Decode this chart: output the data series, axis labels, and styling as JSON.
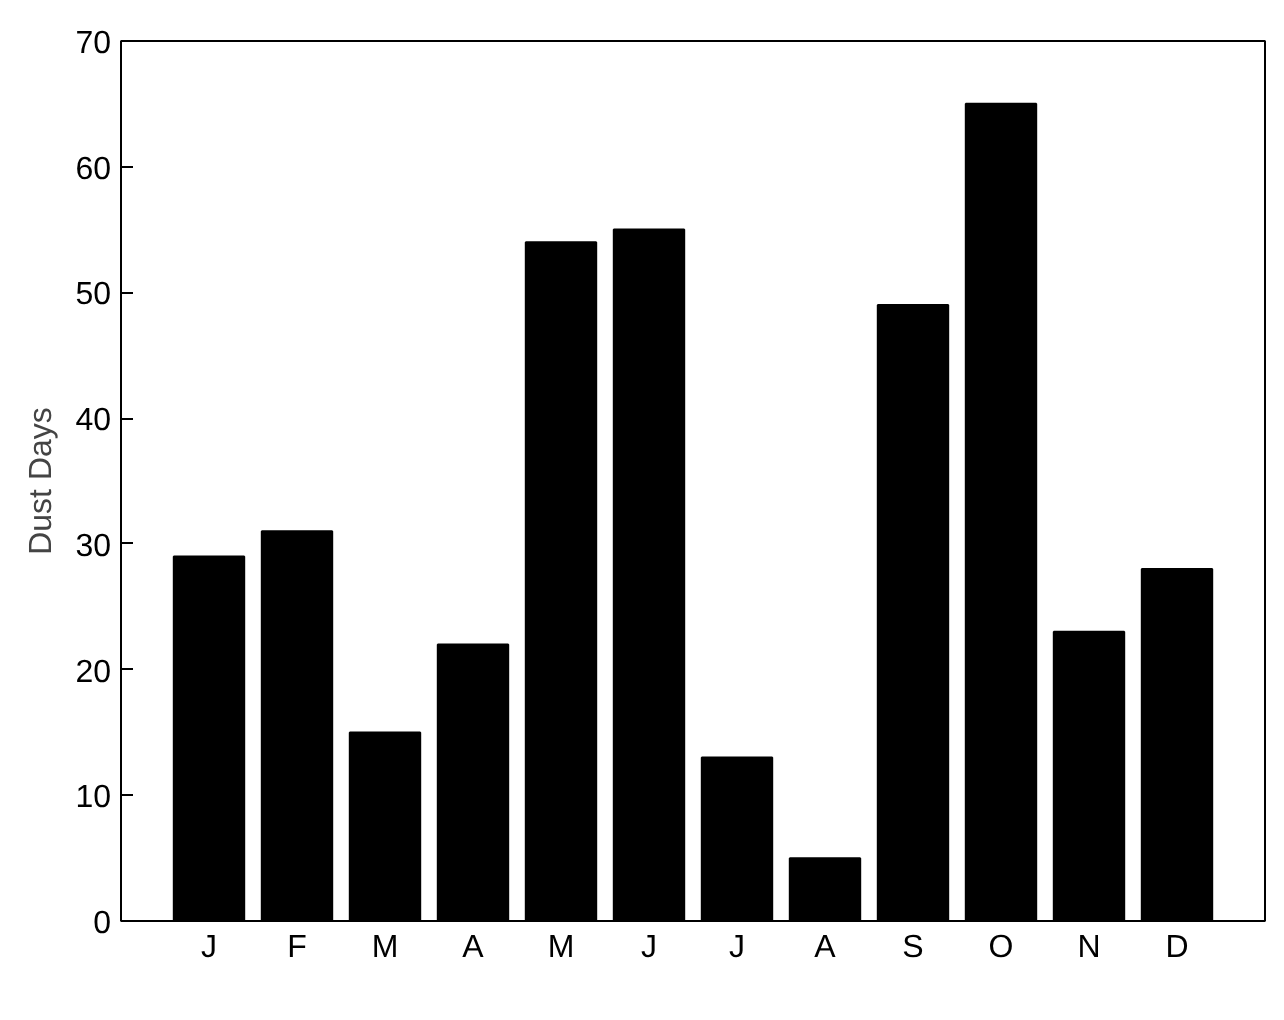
{
  "chart_data": {
    "type": "bar",
    "ylabel": "Dust Days",
    "categories": [
      "J",
      "F",
      "M",
      "A",
      "M",
      "J",
      "J",
      "A",
      "S",
      "O",
      "N",
      "D"
    ],
    "values": [
      29,
      31,
      15,
      22,
      54,
      55,
      13,
      5,
      49,
      65,
      23,
      28
    ],
    "color": "#000000",
    "ylim": [
      0,
      70
    ],
    "yticks": [
      0,
      10,
      20,
      30,
      40,
      50,
      60,
      70
    ],
    "grid": false
  }
}
